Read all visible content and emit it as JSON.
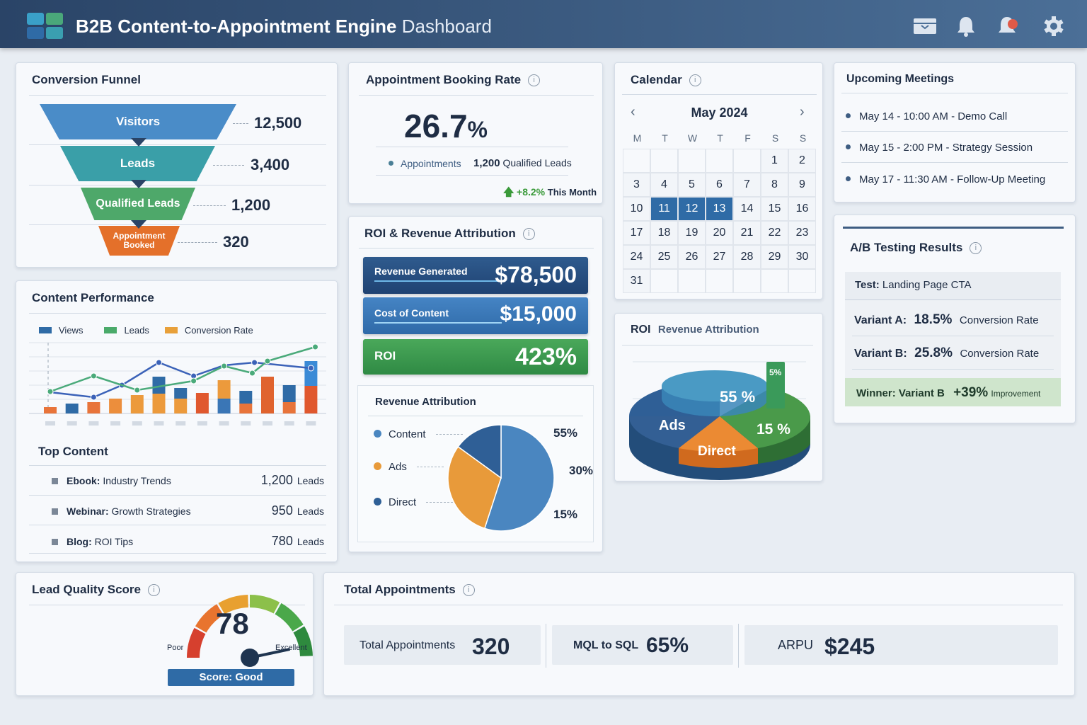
{
  "header": {
    "title_bold": "B2B Content-to-Appointment Engine",
    "title_rest": " Dashboard",
    "icons": [
      "inbox-icon",
      "bell-icon",
      "notification-alert-icon",
      "gear-icon"
    ],
    "brand_colors": [
      "#3aa0c8",
      "#4aa87a",
      "#2f6ba6"
    ]
  },
  "funnel": {
    "title": "Conversion Funnel",
    "stages": [
      {
        "label": "Visitors",
        "value": "12,500",
        "color": "#4a8cc8"
      },
      {
        "label": "Leads",
        "value": "3,400",
        "color": "#3a9fa8"
      },
      {
        "label": "Qualified Leads",
        "value": "1,200",
        "color": "#4ea86a"
      },
      {
        "label": "Appointment Booked",
        "value": "320",
        "color": "#e4702a"
      }
    ]
  },
  "booking": {
    "title": "Appointment Booking Rate",
    "rate": "26.7",
    "rate_unit": "%",
    "legend": "Appointments",
    "leads_value": "1,200",
    "leads_label": "Qualified Leads",
    "change": "+8.2%",
    "change_label": "This Month"
  },
  "calendar": {
    "title": "Calendar",
    "month": "May 2024",
    "weekdays": [
      "M",
      "T",
      "W",
      "T",
      "F",
      "S",
      "S"
    ],
    "leading_blanks": 5,
    "days": 31,
    "selected": [
      11,
      12,
      13
    ]
  },
  "meetings": {
    "title": "Upcoming Meetings",
    "items": [
      "May 14 - 10:00 AM - Demo Call",
      "May 15 - 2:00 PM - Strategy Session",
      "May 17 - 11:30 AM - Follow-Up Meeting"
    ]
  },
  "content": {
    "title": "Content Performance",
    "top_title": "Top Content",
    "top": [
      {
        "type": "Ebook:",
        "name": "Industry Trends",
        "value": "1,200",
        "unit": "Leads"
      },
      {
        "type": "Webinar:",
        "name": "Growth Strategies",
        "value": "950",
        "unit": "Leads"
      },
      {
        "type": "Blog:",
        "name": "ROI Tips",
        "value": "780",
        "unit": "Leads"
      }
    ]
  },
  "roi": {
    "title": "ROI & Revenue Attribution",
    "revenue_label": "Revenue Generated",
    "revenue": "$78,500",
    "cost_label": "Cost of Content",
    "cost": "$15,000",
    "roi_label": "ROI",
    "roi": "423%",
    "attr_title": "Revenue Attribution"
  },
  "roi3d": {
    "title_bold": "ROI",
    "title_rest": "Revenue Attribution",
    "labels": {
      "a": "55 %",
      "b": "15 %",
      "c": "5%",
      "ads": "Ads",
      "direct": "Direct"
    }
  },
  "ab": {
    "title": "A/B Testing Results",
    "test_label": "Test:",
    "test": "Landing Page CTA",
    "a_label": "Variant A:",
    "a_value": "18.5%",
    "b_label": "Variant B:",
    "b_value": "25.8%",
    "metric": "Conversion Rate",
    "winner": "Winner: Variant B",
    "lift": "+39%",
    "lift_label": "Improvement"
  },
  "lead_quality": {
    "title": "Lead Quality Score",
    "score": "78",
    "score_fraction": 0.78,
    "min_label": "Poor",
    "max_label": "Excellent",
    "badge": "Score: Good"
  },
  "totals": {
    "title": "Total Appointments",
    "stats": [
      {
        "label": "Total Appointments",
        "value": "320"
      },
      {
        "label": "MQL to SQL",
        "value": "65%"
      },
      {
        "label": "ARPU",
        "value": "$245"
      }
    ]
  },
  "chart_data": [
    {
      "type": "bar",
      "title": "Content Performance",
      "legend": [
        {
          "name": "Views",
          "color": "#2f6ba6"
        },
        {
          "name": "Leads",
          "color": "#4aaa6a"
        },
        {
          "name": "Conversion Rate",
          "color": "#e8a03a"
        }
      ],
      "legend_position": "top-left",
      "grid": true,
      "ylim": [
        0,
        100
      ],
      "bars": [
        [
          {
            "v": 9,
            "c": "#e8743a"
          }
        ],
        [
          {
            "v": 14,
            "c": "#2f6ba6"
          }
        ],
        [
          {
            "v": 16,
            "c": "#e8743a"
          }
        ],
        [
          {
            "v": 21,
            "c": "#ec8e3c"
          }
        ],
        [
          {
            "v": 26,
            "c": "#ec9a3c"
          }
        ],
        [
          {
            "v": 28,
            "c": "#ec9a3c"
          },
          {
            "v": 24,
            "c": "#2f6ba6"
          }
        ],
        [
          {
            "v": 21,
            "c": "#ec9a3c"
          },
          {
            "v": 15,
            "c": "#2f6ba6"
          }
        ],
        [
          {
            "v": 29,
            "c": "#e0582e"
          }
        ],
        [
          {
            "v": 21,
            "c": "#3a76b6"
          },
          {
            "v": 26,
            "c": "#ec9a3c"
          }
        ],
        [
          {
            "v": 14,
            "c": "#e8743a"
          },
          {
            "v": 18,
            "c": "#2f6ba6"
          }
        ],
        [
          {
            "v": 52,
            "c": "#e0632e"
          }
        ],
        [
          {
            "v": 16,
            "c": "#e8743a"
          },
          {
            "v": 24,
            "c": "#2f6ba6"
          }
        ],
        [
          {
            "v": 39,
            "c": "#e0582e"
          },
          {
            "v": 35,
            "c": "#3a8ad6"
          }
        ]
      ],
      "lines": [
        {
          "color": "#3b62b8",
          "points": [
            [
              0,
              30
            ],
            [
              2,
              23
            ],
            [
              3.3,
              40
            ],
            [
              5,
              72
            ],
            [
              6.6,
              53
            ],
            [
              8,
              68
            ],
            [
              9.4,
              72
            ],
            [
              12,
              64
            ]
          ]
        },
        {
          "color": "#4aaa7a",
          "points": [
            [
              0,
              31
            ],
            [
              2,
              53
            ],
            [
              4,
              33
            ],
            [
              6.6,
              46
            ],
            [
              8,
              67
            ],
            [
              9.3,
              57
            ],
            [
              10,
              74
            ],
            [
              12.2,
              94
            ]
          ]
        }
      ]
    },
    {
      "type": "pie",
      "title": "Revenue Attribution",
      "slices": [
        {
          "name": "Content",
          "value": 55,
          "color": "#4a86c0"
        },
        {
          "name": "Ads",
          "value": 30,
          "color": "#e89a3a"
        },
        {
          "name": "Direct",
          "value": 15,
          "color": "#2f5f96"
        }
      ]
    },
    {
      "type": "pie",
      "title": "ROI Revenue Attribution",
      "slices": [
        {
          "name": "Ads",
          "color": "#2f5f96"
        },
        {
          "name": "55 %",
          "value": 55,
          "color": "#3a8ab8"
        },
        {
          "name": "15 %",
          "value": 15,
          "color": "#4a9a4a"
        },
        {
          "name": "Direct",
          "color": "#e8822a"
        },
        {
          "name": "5%",
          "value": 5,
          "color": "#3a9a5a"
        }
      ]
    }
  ]
}
